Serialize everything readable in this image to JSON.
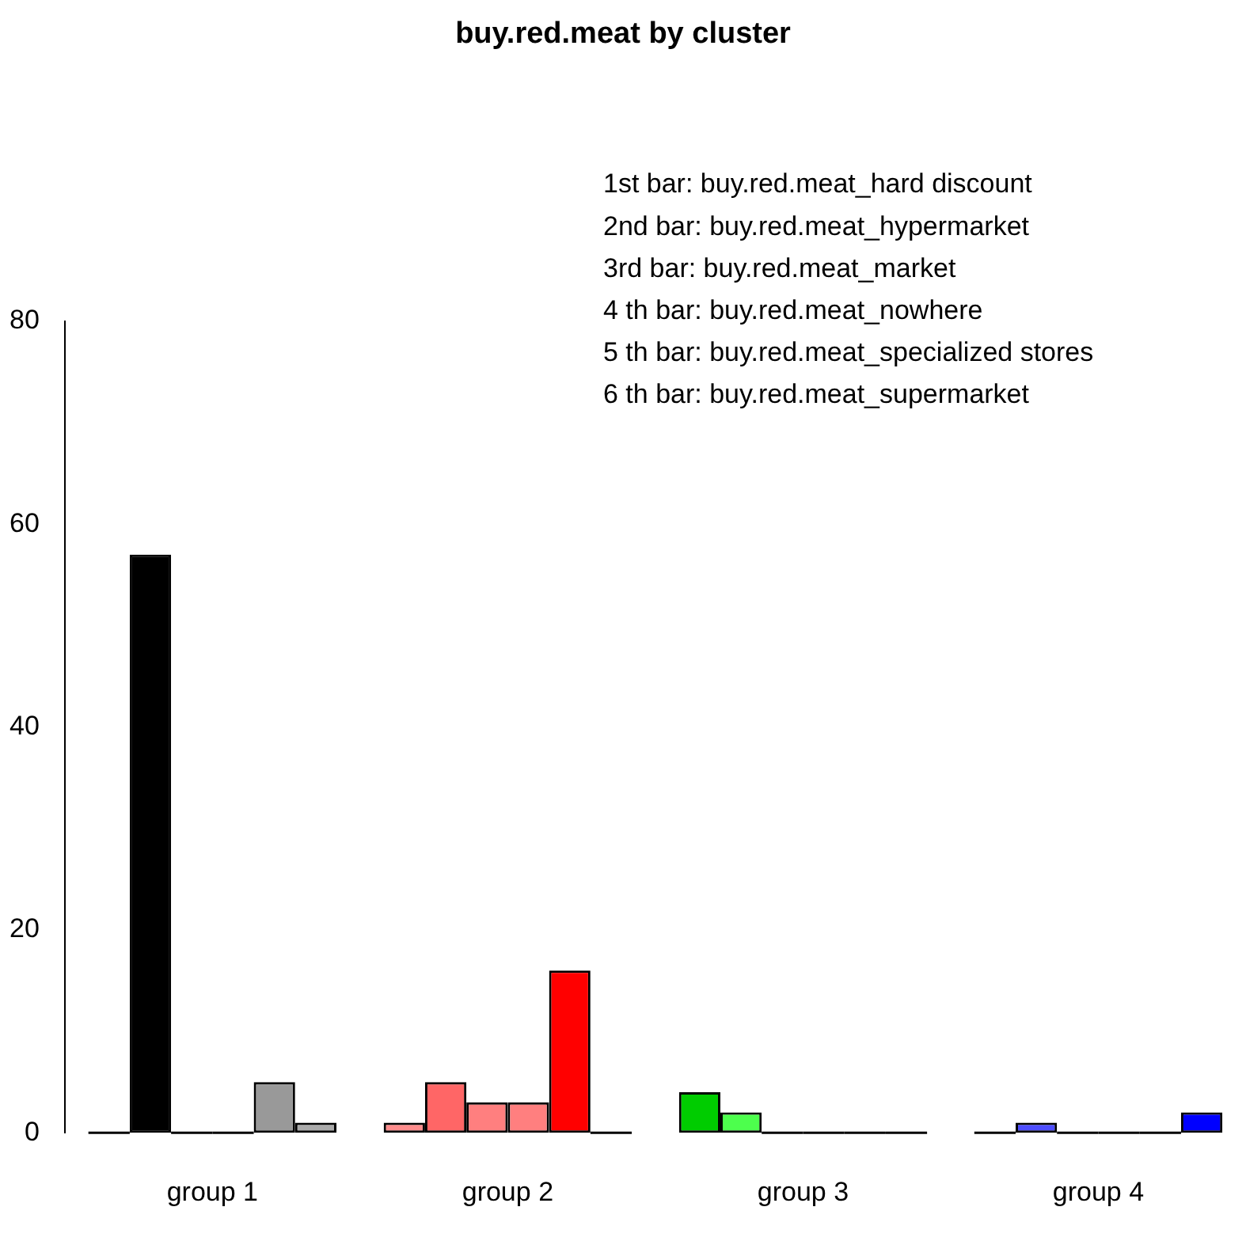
{
  "chart_data": {
    "type": "bar",
    "title": "buy.red.meat by cluster",
    "categories": [
      "group 1",
      "group 2",
      "group 3",
      "group 4"
    ],
    "series": [
      {
        "colors": [
          "#000000",
          "#ff8c8c",
          "#00cc00",
          "#4d4dff"
        ],
        "values": [
          0,
          1,
          4,
          0
        ]
      },
      {
        "colors": [
          "#000000",
          "#ff6666",
          "#4dff4d",
          "#4d4dff"
        ],
        "values": [
          57,
          5,
          2,
          1
        ]
      },
      {
        "colors": [
          "#999999",
          "#ff7f7f",
          "#4dff4d",
          "#4d4dff"
        ],
        "values": [
          0,
          3,
          0,
          0
        ]
      },
      {
        "colors": [
          "#999999",
          "#ff7f7f",
          "#4dff4d",
          "#4d4dff"
        ],
        "values": [
          0,
          3,
          0,
          0
        ]
      },
      {
        "colors": [
          "#999999",
          "#ff0000",
          "#4dff4d",
          "#0000ff"
        ],
        "values": [
          5,
          16,
          0,
          0
        ]
      },
      {
        "colors": [
          "#aaaaaa",
          "#ff0000",
          "#4dff4d",
          "#0000ff"
        ],
        "values": [
          1,
          0,
          0,
          2
        ]
      }
    ],
    "ylim": [
      0,
      80
    ],
    "yticks": [
      0,
      20,
      40,
      60,
      80
    ],
    "grid": false,
    "legend": false,
    "annotations": [
      "1st bar: buy.red.meat_hard discount",
      "2nd bar: buy.red.meat_hypermarket",
      "3rd bar: buy.red.meat_market",
      "4 th bar: buy.red.meat_nowhere",
      "5 th bar: buy.red.meat_specialized stores",
      "6 th bar: buy.red.meat_supermarket"
    ]
  }
}
